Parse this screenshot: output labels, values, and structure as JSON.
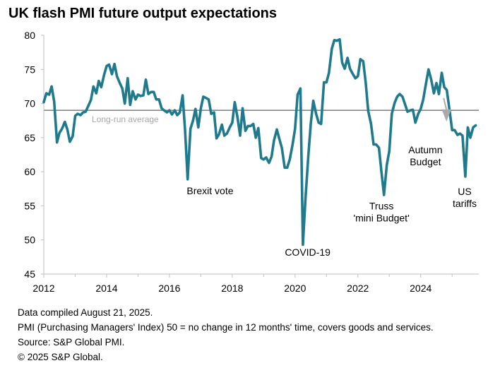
{
  "title": "UK flash PMI future output expectations",
  "footnotes": [
    "Data compiled August 21, 2025.",
    "PMI (Purchasing Managers' Index) 50 = no change in 12 months' time, covers goods and services.",
    "Source: S&P Global PMI.",
    "© 2025 S&P Global."
  ],
  "colors": {
    "series": "#1e7a8c",
    "reference": "#888888",
    "arrow": "#aaaaaa",
    "axis": "#bfbfbf"
  },
  "chart_data": {
    "type": "line",
    "xlim": [
      2012.0,
      2025.85
    ],
    "ylim": [
      45,
      80
    ],
    "x_ticks": [
      2012,
      2014,
      2016,
      2018,
      2020,
      2022,
      2024
    ],
    "x_tick_labels": [
      "2012",
      "2014",
      "2016",
      "2018",
      "2020",
      "2022",
      "2024"
    ],
    "y_ticks": [
      45,
      50,
      55,
      60,
      65,
      70,
      75,
      80
    ],
    "y_tick_labels": [
      "45",
      "50",
      "55",
      "60",
      "65",
      "70",
      "75",
      "80"
    ],
    "grid": false,
    "reference_line": {
      "value": 69,
      "label": "Long-run average"
    },
    "annotations": [
      {
        "lines": [
          "Brexit vote"
        ],
        "x": 2016.55,
        "y": 56.7,
        "anchor": "start"
      },
      {
        "lines": [
          "COVID-19"
        ],
        "x": 2020.4,
        "y": 47.7,
        "anchor": "middle"
      },
      {
        "lines": [
          "Truss",
          "'mini Budget'"
        ],
        "x": 2022.75,
        "y": 54.5,
        "anchor": "middle"
      },
      {
        "lines": [
          "Autumn",
          "Budget"
        ],
        "x": 2024.15,
        "y": 62.7,
        "anchor": "middle"
      },
      {
        "lines": [
          "US",
          "tariffs"
        ],
        "x": 2025.4,
        "y": 56.6,
        "anchor": "middle"
      }
    ],
    "series": [
      {
        "values": [
          [
            2012.0,
            70.2
          ],
          [
            2012.08,
            71.5
          ],
          [
            2012.17,
            71.3
          ],
          [
            2012.25,
            72.5
          ],
          [
            2012.33,
            70.3
          ],
          [
            2012.42,
            64.3
          ],
          [
            2012.5,
            65.7
          ],
          [
            2012.58,
            66.3
          ],
          [
            2012.67,
            67.3
          ],
          [
            2012.75,
            66.2
          ],
          [
            2012.83,
            64.4
          ],
          [
            2012.92,
            65.2
          ],
          [
            2013.0,
            68.2
          ],
          [
            2013.08,
            68.5
          ],
          [
            2013.17,
            68.3
          ],
          [
            2013.25,
            68.7
          ],
          [
            2013.33,
            68.8
          ],
          [
            2013.42,
            69.7
          ],
          [
            2013.5,
            70.5
          ],
          [
            2013.58,
            72.5
          ],
          [
            2013.67,
            71.5
          ],
          [
            2013.75,
            73.3
          ],
          [
            2013.83,
            72.4
          ],
          [
            2013.92,
            74.2
          ],
          [
            2014.0,
            75.5
          ],
          [
            2014.08,
            75.7
          ],
          [
            2014.17,
            74.3
          ],
          [
            2014.25,
            75.8
          ],
          [
            2014.33,
            74.0
          ],
          [
            2014.42,
            73.0
          ],
          [
            2014.5,
            72.2
          ],
          [
            2014.58,
            70.0
          ],
          [
            2014.67,
            73.7
          ],
          [
            2014.75,
            69.8
          ],
          [
            2014.83,
            71.8
          ],
          [
            2014.92,
            70.6
          ],
          [
            2015.0,
            71.3
          ],
          [
            2015.08,
            71.1
          ],
          [
            2015.17,
            71.2
          ],
          [
            2015.25,
            73.5
          ],
          [
            2015.33,
            71.4
          ],
          [
            2015.42,
            71.7
          ],
          [
            2015.5,
            71.7
          ],
          [
            2015.58,
            70.6
          ],
          [
            2015.67,
            70.6
          ],
          [
            2015.75,
            69.3
          ],
          [
            2015.83,
            69.0
          ],
          [
            2015.92,
            68.7
          ],
          [
            2016.0,
            69.0
          ],
          [
            2016.08,
            68.4
          ],
          [
            2016.17,
            69.0
          ],
          [
            2016.25,
            68.3
          ],
          [
            2016.33,
            68.7
          ],
          [
            2016.42,
            71.2
          ],
          [
            2016.5,
            66.0
          ],
          [
            2016.58,
            58.9
          ],
          [
            2016.67,
            66.3
          ],
          [
            2016.75,
            67.5
          ],
          [
            2016.83,
            69.2
          ],
          [
            2016.92,
            66.5
          ],
          [
            2017.0,
            69.3
          ],
          [
            2017.08,
            71.0
          ],
          [
            2017.17,
            70.8
          ],
          [
            2017.25,
            70.6
          ],
          [
            2017.33,
            68.5
          ],
          [
            2017.42,
            68.7
          ],
          [
            2017.5,
            64.9
          ],
          [
            2017.58,
            65.5
          ],
          [
            2017.67,
            66.9
          ],
          [
            2017.75,
            65.3
          ],
          [
            2017.83,
            65.6
          ],
          [
            2017.92,
            66.5
          ],
          [
            2018.0,
            67.2
          ],
          [
            2018.08,
            70.2
          ],
          [
            2018.17,
            67.9
          ],
          [
            2018.25,
            65.3
          ],
          [
            2018.33,
            69.3
          ],
          [
            2018.42,
            66.0
          ],
          [
            2018.5,
            66.7
          ],
          [
            2018.58,
            66.7
          ],
          [
            2018.67,
            67.0
          ],
          [
            2018.75,
            65.0
          ],
          [
            2018.83,
            66.4
          ],
          [
            2018.92,
            62.0
          ],
          [
            2019.0,
            61.8
          ],
          [
            2019.08,
            62.1
          ],
          [
            2019.17,
            61.3
          ],
          [
            2019.25,
            62.2
          ],
          [
            2019.33,
            64.6
          ],
          [
            2019.42,
            66.2
          ],
          [
            2019.5,
            64.8
          ],
          [
            2019.58,
            63.5
          ],
          [
            2019.67,
            60.6
          ],
          [
            2019.75,
            60.6
          ],
          [
            2019.83,
            61.8
          ],
          [
            2019.92,
            64.0
          ],
          [
            2020.0,
            66.3
          ],
          [
            2020.08,
            71.3
          ],
          [
            2020.17,
            72.2
          ],
          [
            2020.25,
            49.3
          ],
          [
            2020.33,
            56.0
          ],
          [
            2020.42,
            62.2
          ],
          [
            2020.5,
            67.1
          ],
          [
            2020.58,
            70.4
          ],
          [
            2020.67,
            68.5
          ],
          [
            2020.75,
            67.2
          ],
          [
            2020.83,
            67.0
          ],
          [
            2020.92,
            73.1
          ],
          [
            2021.0,
            73.1
          ],
          [
            2021.08,
            74.5
          ],
          [
            2021.17,
            78.0
          ],
          [
            2021.25,
            79.3
          ],
          [
            2021.33,
            79.2
          ],
          [
            2021.42,
            79.4
          ],
          [
            2021.5,
            76.0
          ],
          [
            2021.58,
            75.1
          ],
          [
            2021.67,
            76.7
          ],
          [
            2021.75,
            75.1
          ],
          [
            2021.83,
            74.4
          ],
          [
            2021.92,
            73.7
          ],
          [
            2022.0,
            74.0
          ],
          [
            2022.08,
            76.5
          ],
          [
            2022.17,
            76.2
          ],
          [
            2022.25,
            73.0
          ],
          [
            2022.33,
            68.9
          ],
          [
            2022.42,
            67.0
          ],
          [
            2022.5,
            64.0
          ],
          [
            2022.58,
            64.0
          ],
          [
            2022.67,
            63.5
          ],
          [
            2022.75,
            60.0
          ],
          [
            2022.83,
            56.6
          ],
          [
            2022.92,
            61.0
          ],
          [
            2023.0,
            63.0
          ],
          [
            2023.08,
            68.5
          ],
          [
            2023.17,
            70.1
          ],
          [
            2023.25,
            71.0
          ],
          [
            2023.33,
            71.4
          ],
          [
            2023.42,
            71.0
          ],
          [
            2023.5,
            69.9
          ],
          [
            2023.58,
            68.8
          ],
          [
            2023.67,
            69.0
          ],
          [
            2023.75,
            69.1
          ],
          [
            2023.83,
            67.2
          ],
          [
            2023.92,
            68.5
          ],
          [
            2024.0,
            69.2
          ],
          [
            2024.08,
            70.6
          ],
          [
            2024.17,
            73.0
          ],
          [
            2024.25,
            75.0
          ],
          [
            2024.33,
            73.6
          ],
          [
            2024.42,
            71.5
          ],
          [
            2024.5,
            73.0
          ],
          [
            2024.58,
            71.4
          ],
          [
            2024.67,
            74.5
          ],
          [
            2024.75,
            72.4
          ],
          [
            2024.83,
            72.0
          ],
          [
            2024.92,
            69.0
          ],
          [
            2025.0,
            66.1
          ],
          [
            2025.08,
            66.1
          ],
          [
            2025.17,
            65.4
          ],
          [
            2025.25,
            65.6
          ],
          [
            2025.33,
            65.3
          ],
          [
            2025.42,
            59.3
          ],
          [
            2025.5,
            66.5
          ],
          [
            2025.58,
            65.0
          ],
          [
            2025.67,
            66.5
          ],
          [
            2025.75,
            66.8
          ]
        ]
      }
    ]
  }
}
